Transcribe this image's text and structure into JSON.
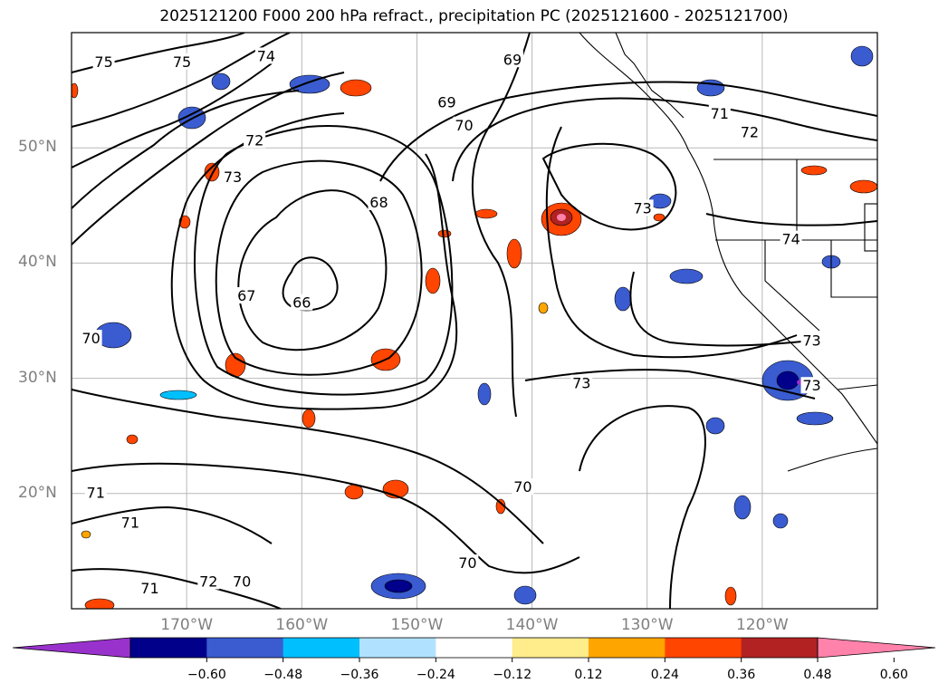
{
  "title": "2025121200 F000 200 hPa refract., precipitation PC (2025121600 - 2025121700)",
  "map": {
    "lon_range": [
      -180,
      -110
    ],
    "lat_range": [
      10,
      60
    ],
    "lat_ticks": [
      {
        "value": 50,
        "label": "50°N"
      },
      {
        "value": 40,
        "label": "40°N"
      },
      {
        "value": 30,
        "label": "30°N"
      },
      {
        "value": 20,
        "label": "20°N"
      }
    ],
    "lon_ticks": [
      {
        "value": -170,
        "label": "170°W"
      },
      {
        "value": -160,
        "label": "160°W"
      },
      {
        "value": -150,
        "label": "150°W"
      },
      {
        "value": -140,
        "label": "140°W"
      },
      {
        "value": -130,
        "label": "130°W"
      },
      {
        "value": -120,
        "label": "120°W"
      }
    ],
    "contour_labels": [
      {
        "text": "75",
        "lon": -177.2,
        "lat": 57.5
      },
      {
        "text": "75",
        "lon": -170.4,
        "lat": 57.5
      },
      {
        "text": "74",
        "lon": -163.1,
        "lat": 58.0
      },
      {
        "text": "73",
        "lon": -166.0,
        "lat": 47.5
      },
      {
        "text": "72",
        "lon": -164.1,
        "lat": 50.7
      },
      {
        "text": "69",
        "lon": -147.4,
        "lat": 54.0
      },
      {
        "text": "70",
        "lon": -145.9,
        "lat": 52.0
      },
      {
        "text": "68",
        "lon": -153.3,
        "lat": 45.3
      },
      {
        "text": "67",
        "lon": -164.8,
        "lat": 37.2
      },
      {
        "text": "66",
        "lon": -160.0,
        "lat": 36.6
      },
      {
        "text": "69",
        "lon": -141.7,
        "lat": 57.7
      },
      {
        "text": "71",
        "lon": -123.7,
        "lat": 53.0
      },
      {
        "text": "72",
        "lon": -121.1,
        "lat": 51.4
      },
      {
        "text": "73",
        "lon": -130.4,
        "lat": 44.8
      },
      {
        "text": "74",
        "lon": -117.5,
        "lat": 42.1
      },
      {
        "text": "73",
        "lon": -115.7,
        "lat": 33.3
      },
      {
        "text": "73",
        "lon": -135.7,
        "lat": 29.6
      },
      {
        "text": "73",
        "lon": -115.7,
        "lat": 29.4
      },
      {
        "text": "70",
        "lon": -178.3,
        "lat": 33.5
      },
      {
        "text": "71",
        "lon": -177.9,
        "lat": 20.1
      },
      {
        "text": "71",
        "lon": -174.9,
        "lat": 17.5
      },
      {
        "text": "70",
        "lon": -140.8,
        "lat": 20.6
      },
      {
        "text": "70",
        "lon": -145.6,
        "lat": 14.0
      },
      {
        "text": "71",
        "lon": -173.2,
        "lat": 11.8
      },
      {
        "text": "72",
        "lon": -168.1,
        "lat": 12.4
      },
      {
        "text": "70",
        "lon": -165.2,
        "lat": 12.4
      }
    ]
  },
  "colorbar": {
    "colors": [
      "#9932cc",
      "#00008b",
      "#3a5cd0",
      "#00bfff",
      "#b0e2ff",
      "#ffffff",
      "#ffec8b",
      "#ffa500",
      "#ff4500",
      "#b22222",
      "#ff82ab"
    ],
    "ticks": [
      "−0.60",
      "−0.48",
      "−0.36",
      "−0.24",
      "−0.12",
      "0.12",
      "0.24",
      "0.36",
      "0.48",
      "0.60"
    ]
  }
}
